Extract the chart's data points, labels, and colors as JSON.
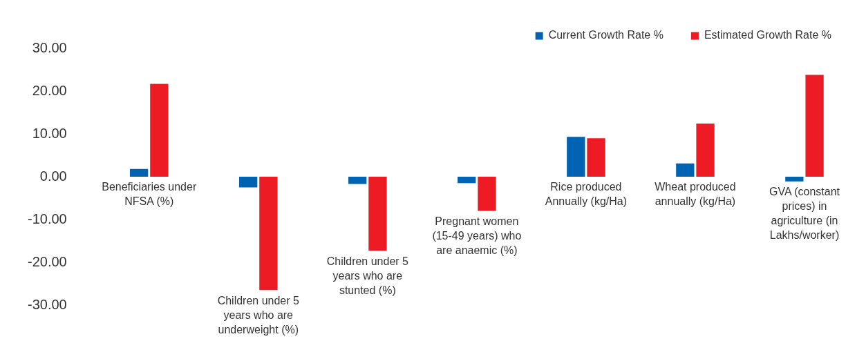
{
  "chart_data": {
    "type": "bar",
    "categories": [
      "Beneficiaries under NFSA (%)",
      "Children under 5 years who are underweight (%)",
      "Children under 5 years who are stunted (%)",
      "Pregnant women (15-49 years) who are anaemic (%)",
      "Rice produced Annually (kg/Ha)",
      "Wheat produced annually (kg/Ha)",
      "GVA (constant prices) in agriculture (in Lakhs/worker)"
    ],
    "series": [
      {
        "name": "Current Growth Rate %",
        "color": "#0063b1",
        "values": [
          1.8,
          -2.5,
          -1.7,
          -1.5,
          9.3,
          3.1,
          -1.1
        ]
      },
      {
        "name": "Estimated Growth Rate %",
        "color": "#ed1c24",
        "values": [
          21.7,
          -26.5,
          -17.3,
          -8.0,
          9.0,
          12.4,
          23.8
        ]
      }
    ],
    "ylim": [
      -30,
      30
    ],
    "yticks": [
      {
        "value": 30,
        "label": "30.00"
      },
      {
        "value": 20,
        "label": "20.00"
      },
      {
        "value": 10,
        "label": "10.00"
      },
      {
        "value": 0,
        "label": "0.00"
      },
      {
        "value": -10,
        "label": "-10.00"
      },
      {
        "value": -20,
        "label": "-20.00"
      },
      {
        "value": -30,
        "label": "-30.00"
      }
    ],
    "grid": false,
    "legend": "top right"
  }
}
